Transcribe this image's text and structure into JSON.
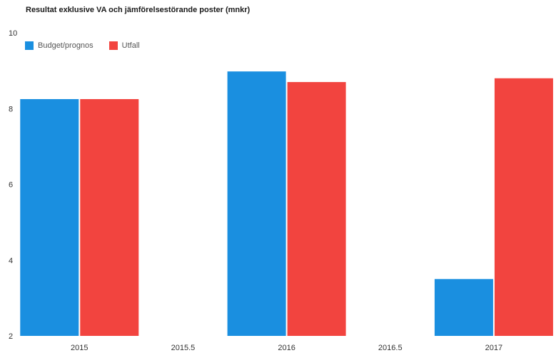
{
  "chart_data": {
    "type": "bar",
    "title": "Resultat exklusive VA och jämförelsestörande poster (mnkr)",
    "xlabel": "",
    "ylabel": "",
    "x": [
      2015,
      2016,
      2017
    ],
    "xlim": [
      2014.72,
      2017.3
    ],
    "x_ticks": [
      2015,
      2015.5,
      2016,
      2016.5,
      2017
    ],
    "x_tick_labels": [
      "2015",
      "2015.5",
      "2016",
      "2016.5",
      "2017"
    ],
    "ylim": [
      2,
      10
    ],
    "y_ticks": [
      2,
      4,
      6,
      8,
      10
    ],
    "y_tick_labels": [
      "2",
      "4",
      "6",
      "8",
      "10"
    ],
    "grid": false,
    "legend": "top-left",
    "series": [
      {
        "name": "Budget/prognos",
        "values": [
          8.25,
          8.98,
          3.5
        ],
        "color": "#1a8fe0"
      },
      {
        "name": "Utfall",
        "values": [
          8.25,
          8.7,
          8.8
        ],
        "color": "#f2443f"
      }
    ]
  }
}
